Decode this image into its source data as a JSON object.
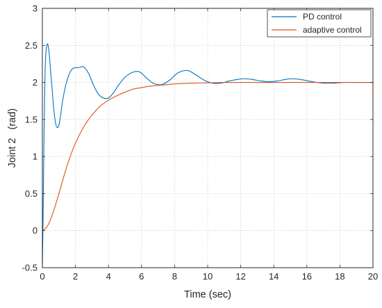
{
  "chart_data": {
    "type": "line",
    "title": "",
    "xlabel": "Time (sec)",
    "ylabel": "Joint 2   (rad)",
    "xlim": [
      0,
      20
    ],
    "ylim": [
      -0.5,
      3
    ],
    "xticks": [
      "0",
      "2",
      "4",
      "6",
      "8",
      "10",
      "12",
      "14",
      "16",
      "18",
      "20"
    ],
    "yticks": [
      "-0.5",
      "0",
      "0.5",
      "1",
      "1.5",
      "2",
      "2.5",
      "3"
    ],
    "grid": true,
    "legend_position": "top-right",
    "series": [
      {
        "name": "PD control",
        "color": "#0072BD",
        "x": [
          0,
          0.05,
          0.1,
          0.15,
          0.2,
          0.3,
          0.4,
          0.5,
          0.6,
          0.7,
          0.8,
          0.9,
          1.0,
          1.1,
          1.2,
          1.4,
          1.6,
          1.8,
          2.0,
          2.2,
          2.5,
          2.8,
          3.1,
          3.4,
          3.7,
          4.0,
          4.3,
          4.6,
          5.0,
          5.5,
          5.9,
          6.3,
          6.7,
          7.2,
          7.7,
          8.2,
          8.8,
          9.3,
          9.8,
          10.3,
          10.8,
          11.3,
          11.8,
          12.2,
          12.7,
          13.2,
          13.7,
          14.2,
          14.7,
          15.1,
          15.6,
          16.1,
          16.6,
          17.1,
          17.6,
          18.2,
          19.0,
          20.0
        ],
        "y": [
          -0.5,
          0.3,
          1.3,
          2.0,
          2.35,
          2.52,
          2.42,
          2.15,
          1.88,
          1.62,
          1.45,
          1.39,
          1.42,
          1.55,
          1.72,
          1.95,
          2.1,
          2.18,
          2.2,
          2.2,
          2.21,
          2.12,
          1.96,
          1.84,
          1.79,
          1.79,
          1.86,
          1.96,
          2.07,
          2.14,
          2.14,
          2.06,
          1.99,
          1.97,
          2.03,
          2.13,
          2.16,
          2.1,
          2.03,
          1.99,
          1.99,
          2.02,
          2.04,
          2.05,
          2.04,
          2.02,
          2.01,
          2.02,
          2.04,
          2.05,
          2.04,
          2.02,
          2.0,
          1.99,
          1.99,
          2.0,
          2.0,
          2.0
        ]
      },
      {
        "name": "adaptive control",
        "color": "#D95319",
        "x": [
          0,
          0.2,
          0.4,
          0.7,
          1.0,
          1.5,
          2.0,
          2.5,
          3.0,
          3.5,
          4.0,
          4.5,
          5.0,
          5.5,
          6.0,
          6.5,
          7.0,
          7.5,
          8.0,
          9.0,
          10.0,
          11.0,
          12.0,
          14.0,
          16.0,
          18.0,
          20.0
        ],
        "y": [
          0.0,
          0.03,
          0.1,
          0.28,
          0.5,
          0.88,
          1.18,
          1.4,
          1.56,
          1.68,
          1.76,
          1.82,
          1.87,
          1.91,
          1.93,
          1.95,
          1.96,
          1.97,
          1.98,
          1.99,
          1.995,
          2.0,
          2.0,
          2.0,
          2.0,
          2.0,
          2.0
        ]
      }
    ]
  }
}
